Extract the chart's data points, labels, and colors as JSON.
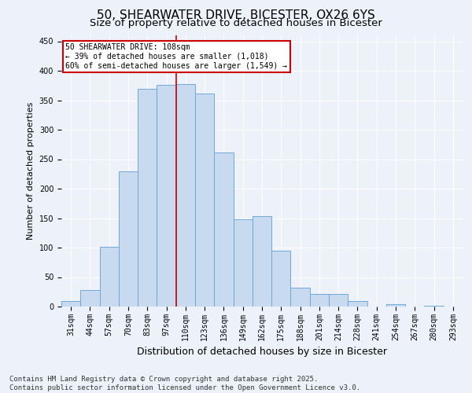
{
  "title": "50, SHEARWATER DRIVE, BICESTER, OX26 6YS",
  "subtitle": "Size of property relative to detached houses in Bicester",
  "xlabel": "Distribution of detached houses by size in Bicester",
  "ylabel": "Number of detached properties",
  "categories": [
    "31sqm",
    "44sqm",
    "57sqm",
    "70sqm",
    "83sqm",
    "97sqm",
    "110sqm",
    "123sqm",
    "136sqm",
    "149sqm",
    "162sqm",
    "175sqm",
    "188sqm",
    "201sqm",
    "214sqm",
    "228sqm",
    "241sqm",
    "254sqm",
    "267sqm",
    "280sqm",
    "293sqm"
  ],
  "values": [
    9,
    28,
    101,
    230,
    370,
    376,
    378,
    362,
    261,
    148,
    153,
    95,
    32,
    22,
    22,
    10,
    0,
    4,
    0,
    2,
    0
  ],
  "bar_color": "#c8daf0",
  "bar_edge_color": "#6fa8d8",
  "vline_color": "#cc0000",
  "annotation_text": "50 SHEARWATER DRIVE: 108sqm\n← 39% of detached houses are smaller (1,018)\n60% of semi-detached houses are larger (1,549) →",
  "annotation_box_color": "#ffffff",
  "annotation_box_edge": "#cc0000",
  "footer": "Contains HM Land Registry data © Crown copyright and database right 2025.\nContains public sector information licensed under the Open Government Licence v3.0.",
  "ylim": [
    0,
    460
  ],
  "yticks": [
    0,
    50,
    100,
    150,
    200,
    250,
    300,
    350,
    400,
    450
  ],
  "bg_color": "#edf2fa",
  "title_fontsize": 11,
  "subtitle_fontsize": 9.5,
  "axis_label_fontsize": 8,
  "tick_fontsize": 7,
  "footer_fontsize": 6.5
}
